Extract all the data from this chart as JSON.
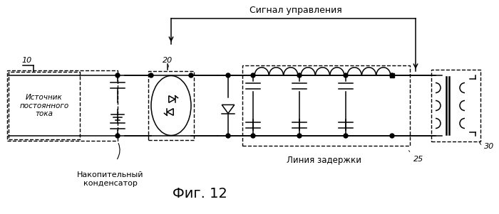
{
  "title": "Фиг. 12",
  "label_signal": "Сигнал управления",
  "label_source": "Источник\nпостоянного\nтока",
  "label_capacitor": "Накопительный\nконденсатор",
  "label_delay": "Линия задержки",
  "label_10": "10",
  "label_20": "20",
  "label_25": "25",
  "label_30": "30",
  "bg_color": "#ffffff",
  "line_color": "#000000",
  "fig_width": 7.0,
  "fig_height": 3.01,
  "dpi": 100
}
